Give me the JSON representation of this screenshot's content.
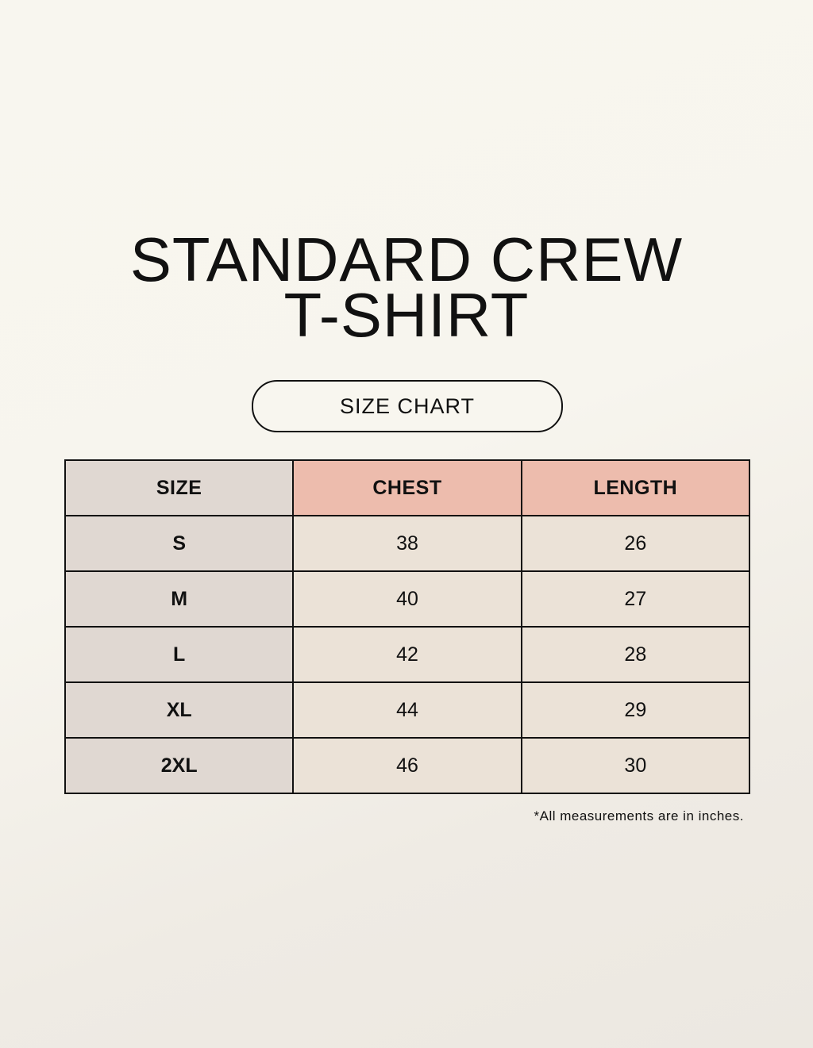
{
  "title": {
    "line1": "STANDARD CREW",
    "line2": "T-SHIRT"
  },
  "subtitle": "SIZE CHART",
  "table": {
    "headers": [
      "SIZE",
      "CHEST",
      "LENGTH"
    ],
    "rows": [
      [
        "S",
        "38",
        "26"
      ],
      [
        "M",
        "40",
        "27"
      ],
      [
        "L",
        "42",
        "28"
      ],
      [
        "XL",
        "44",
        "29"
      ],
      [
        "2XL",
        "46",
        "30"
      ]
    ]
  },
  "note": "*All measurements are in inches.",
  "colors": {
    "size_column": "#e0d8d2",
    "measure_header": "#edbcad",
    "cell": "#ebe2d7"
  }
}
